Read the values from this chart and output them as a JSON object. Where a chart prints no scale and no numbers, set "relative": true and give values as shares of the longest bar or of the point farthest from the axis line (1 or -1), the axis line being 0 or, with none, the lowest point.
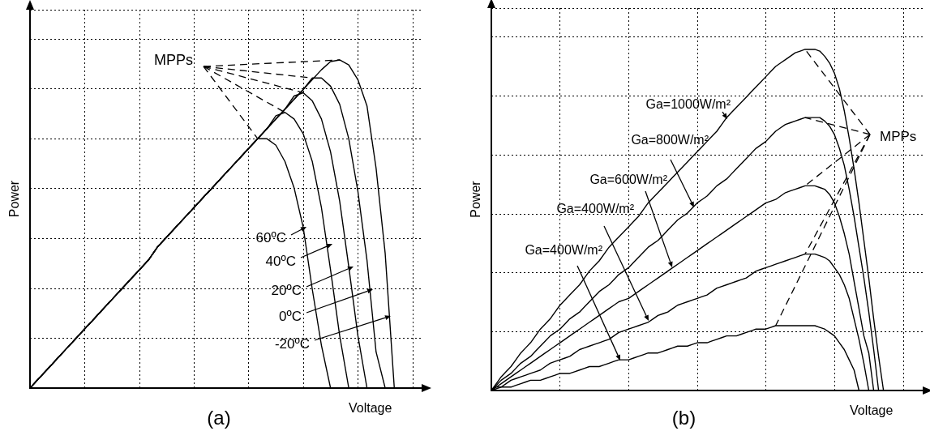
{
  "chart_data": [
    {
      "type": "line",
      "title": "(a)",
      "xlabel": "Voltage",
      "ylabel": "Power",
      "relative": true,
      "grid": true,
      "marker": "none",
      "line_style": "solid",
      "categories": [
        null,
        null,
        null,
        null,
        null,
        null,
        null,
        null,
        null,
        null,
        null,
        null,
        null,
        null,
        null,
        null,
        null,
        null,
        null,
        null,
        null,
        null,
        null,
        null,
        null,
        null,
        null,
        null,
        null,
        null,
        null,
        null,
        null,
        null,
        null,
        null,
        null,
        null,
        null,
        null,
        null,
        null,
        null,
        null
      ],
      "series": [
        {
          "color": "#000000",
          "values": [
            0,
            0.03,
            0.06,
            0.09,
            0.12,
            0.15,
            0.18,
            0.21,
            0.24,
            0.27,
            0.3,
            0.33,
            0.36,
            0.39,
            0.43,
            0.46,
            0.49,
            0.52,
            0.55,
            0.58,
            0.61,
            0.64,
            0.67,
            0.7,
            0.73,
            0.76,
            0.76,
            0.74,
            0.69,
            0.61,
            0.49,
            0.3,
            0.13,
            0,
            null,
            null,
            null,
            null,
            null,
            null,
            null,
            null,
            null,
            null
          ]
        },
        {
          "color": "#000000",
          "values": [
            0,
            0.03,
            0.06,
            0.09,
            0.12,
            0.15,
            0.18,
            0.21,
            0.24,
            0.27,
            0.3,
            0.33,
            0.36,
            0.39,
            0.43,
            0.46,
            0.49,
            0.52,
            0.55,
            0.58,
            0.61,
            0.64,
            0.67,
            0.7,
            0.73,
            0.76,
            0.79,
            0.83,
            0.84,
            0.82,
            0.775,
            0.69,
            0.55,
            0.36,
            0.16,
            0,
            null,
            null,
            null,
            null,
            null,
            null,
            null,
            null
          ]
        },
        {
          "color": "#000000",
          "values": [
            0,
            0.03,
            0.06,
            0.09,
            0.12,
            0.15,
            0.18,
            0.21,
            0.24,
            0.27,
            0.3,
            0.33,
            0.36,
            0.39,
            0.43,
            0.46,
            0.49,
            0.52,
            0.55,
            0.58,
            0.61,
            0.64,
            0.67,
            0.7,
            0.73,
            0.76,
            0.79,
            0.82,
            0.85,
            0.89,
            0.9,
            0.875,
            0.82,
            0.72,
            0.57,
            0.37,
            0.16,
            0,
            null,
            null,
            null,
            null,
            null,
            null
          ]
        },
        {
          "color": "#000000",
          "values": [
            0,
            0.03,
            0.06,
            0.09,
            0.12,
            0.15,
            0.18,
            0.21,
            0.24,
            0.27,
            0.3,
            0.33,
            0.36,
            0.39,
            0.43,
            0.46,
            0.49,
            0.52,
            0.55,
            0.58,
            0.61,
            0.64,
            0.67,
            0.7,
            0.73,
            0.76,
            0.79,
            0.82,
            0.85,
            0.88,
            0.91,
            0.945,
            0.945,
            0.92,
            0.865,
            0.76,
            0.6,
            0.39,
            0.11,
            0,
            null,
            null,
            null,
            null
          ]
        },
        {
          "color": "#000000",
          "values": [
            0,
            0.03,
            0.06,
            0.09,
            0.12,
            0.15,
            0.18,
            0.21,
            0.24,
            0.27,
            0.3,
            0.33,
            0.36,
            0.39,
            0.43,
            0.46,
            0.49,
            0.52,
            0.55,
            0.58,
            0.61,
            0.64,
            0.67,
            0.7,
            0.73,
            0.76,
            0.79,
            0.82,
            0.85,
            0.88,
            0.91,
            0.94,
            0.97,
            0.995,
            1.0,
            0.985,
            0.94,
            0.86,
            0.67,
            0.41,
            0,
            null,
            null,
            null
          ]
        }
      ],
      "annotations": [
        "MPPs",
        "60ºC",
        "40ºC",
        "20ºC",
        "0ºC",
        "-20ºC"
      ]
    },
    {
      "type": "line",
      "title": "(b)",
      "xlabel": "Voltage",
      "ylabel": "Power",
      "relative": true,
      "grid": true,
      "marker": "none",
      "line_style": "solid",
      "categories": [
        null,
        null,
        null,
        null,
        null,
        null,
        null,
        null,
        null,
        null,
        null,
        null,
        null,
        null,
        null,
        null,
        null,
        null,
        null,
        null,
        null,
        null,
        null,
        null,
        null,
        null,
        null,
        null,
        null,
        null,
        null,
        null,
        null,
        null,
        null,
        null,
        null,
        null,
        null,
        null,
        null,
        null,
        null,
        null,
        null,
        null,
        null,
        null,
        null,
        null,
        null,
        null,
        null,
        null,
        null,
        null,
        null,
        null,
        null,
        null,
        null,
        null,
        null,
        null,
        null,
        null,
        null,
        null,
        null,
        null,
        null,
        null,
        null,
        null,
        null,
        null,
        null,
        null,
        null,
        null,
        null,
        null,
        null,
        null,
        null,
        null,
        null,
        null,
        null
      ],
      "series": [
        {
          "color": "#000000",
          "values": [
            0,
            0.02,
            0.04,
            0.055,
            0.07,
            0.09,
            0.11,
            0.125,
            0.14,
            0.16,
            0.18,
            0.195,
            0.21,
            0.23,
            0.25,
            0.265,
            0.28,
            0.295,
            0.31,
            0.33,
            0.35,
            0.365,
            0.38,
            0.4,
            0.42,
            0.435,
            0.45,
            0.465,
            0.48,
            0.495,
            0.51,
            0.53,
            0.55,
            0.565,
            0.58,
            0.595,
            0.61,
            0.625,
            0.64,
            0.655,
            0.67,
            0.685,
            0.7,
            0.715,
            0.73,
            0.745,
            0.76,
            0.78,
            0.8,
            0.815,
            0.83,
            0.845,
            0.86,
            0.875,
            0.89,
            0.905,
            0.92,
            0.935,
            0.95,
            0.96,
            0.97,
            0.98,
            0.99,
            0.995,
            1.0,
            1.0,
            1.0,
            0.995,
            0.98,
            0.96,
            0.93,
            0.885,
            0.82,
            0.74,
            0.65,
            0.55,
            0.44,
            0.33,
            0.21,
            0.1,
            0,
            null,
            null,
            null,
            null,
            null,
            null,
            null,
            null
          ]
        },
        {
          "color": "#000000",
          "values": [
            0,
            0.015,
            0.03,
            0.04,
            0.05,
            0.065,
            0.08,
            0.09,
            0.1,
            0.115,
            0.13,
            0.145,
            0.16,
            0.17,
            0.18,
            0.195,
            0.21,
            0.22,
            0.23,
            0.245,
            0.26,
            0.275,
            0.29,
            0.3,
            0.31,
            0.325,
            0.34,
            0.35,
            0.36,
            0.375,
            0.39,
            0.405,
            0.42,
            0.43,
            0.44,
            0.455,
            0.47,
            0.485,
            0.5,
            0.51,
            0.52,
            0.535,
            0.55,
            0.56,
            0.57,
            0.585,
            0.6,
            0.61,
            0.62,
            0.635,
            0.65,
            0.665,
            0.68,
            0.695,
            0.71,
            0.72,
            0.73,
            0.745,
            0.76,
            0.77,
            0.78,
            0.785,
            0.79,
            0.795,
            0.8,
            0.8,
            0.8,
            0.8,
            0.79,
            0.775,
            0.75,
            0.71,
            0.66,
            0.59,
            0.51,
            0.42,
            0.33,
            0.23,
            0.12,
            0,
            null,
            null,
            null,
            null,
            null,
            null,
            null,
            null,
            null
          ]
        },
        {
          "color": "#000000",
          "values": [
            0,
            0.01,
            0.02,
            0.03,
            0.04,
            0.05,
            0.06,
            0.07,
            0.08,
            0.09,
            0.1,
            0.11,
            0.12,
            0.13,
            0.14,
            0.15,
            0.16,
            0.17,
            0.18,
            0.19,
            0.2,
            0.21,
            0.22,
            0.23,
            0.24,
            0.25,
            0.26,
            0.265,
            0.27,
            0.28,
            0.29,
            0.3,
            0.31,
            0.32,
            0.33,
            0.34,
            0.35,
            0.36,
            0.37,
            0.38,
            0.39,
            0.4,
            0.41,
            0.42,
            0.43,
            0.44,
            0.45,
            0.46,
            0.47,
            0.48,
            0.49,
            0.5,
            0.51,
            0.52,
            0.53,
            0.54,
            0.55,
            0.555,
            0.56,
            0.57,
            0.58,
            0.585,
            0.59,
            0.595,
            0.6,
            0.6,
            0.6,
            0.595,
            0.59,
            0.575,
            0.55,
            0.51,
            0.46,
            0.4,
            0.32,
            0.24,
            0.16,
            0.11,
            0,
            null,
            null,
            null,
            null,
            null,
            null,
            null,
            null,
            null,
            null
          ]
        },
        {
          "color": "#000000",
          "values": [
            0,
            0.01,
            0.01,
            0.02,
            0.03,
            0.035,
            0.04,
            0.045,
            0.05,
            0.055,
            0.06,
            0.07,
            0.08,
            0.085,
            0.09,
            0.095,
            0.1,
            0.11,
            0.12,
            0.125,
            0.13,
            0.135,
            0.14,
            0.145,
            0.15,
            0.16,
            0.17,
            0.175,
            0.18,
            0.185,
            0.19,
            0.195,
            0.2,
            0.21,
            0.22,
            0.225,
            0.23,
            0.24,
            0.25,
            0.255,
            0.26,
            0.265,
            0.27,
            0.275,
            0.28,
            0.29,
            0.3,
            0.305,
            0.31,
            0.315,
            0.32,
            0.325,
            0.33,
            0.34,
            0.35,
            0.355,
            0.36,
            0.365,
            0.37,
            0.375,
            0.38,
            0.385,
            0.39,
            0.395,
            0.4,
            0.4,
            0.4,
            0.395,
            0.39,
            0.38,
            0.36,
            0.34,
            0.31,
            0.27,
            0.21,
            0.15,
            0.08,
            0,
            null,
            null,
            null,
            null,
            null,
            null,
            null,
            null,
            null,
            null,
            null
          ]
        },
        {
          "color": "#000000",
          "values": [
            0,
            0.005,
            0.01,
            0.01,
            0.01,
            0.015,
            0.02,
            0.025,
            0.03,
            0.03,
            0.03,
            0.035,
            0.04,
            0.045,
            0.05,
            0.05,
            0.05,
            0.055,
            0.06,
            0.065,
            0.07,
            0.07,
            0.07,
            0.075,
            0.08,
            0.085,
            0.09,
            0.09,
            0.09,
            0.095,
            0.1,
            0.105,
            0.11,
            0.11,
            0.11,
            0.115,
            0.12,
            0.125,
            0.13,
            0.13,
            0.13,
            0.135,
            0.14,
            0.14,
            0.14,
            0.145,
            0.15,
            0.155,
            0.16,
            0.16,
            0.16,
            0.165,
            0.17,
            0.175,
            0.18,
            0.18,
            0.18,
            0.185,
            0.19,
            0.19,
            0.19,
            0.19,
            0.19,
            0.19,
            0.19,
            0.19,
            0.19,
            0.185,
            0.18,
            0.17,
            0.16,
            0.14,
            0.12,
            0.09,
            0.06,
            0,
            null,
            null,
            null,
            null,
            null,
            null,
            null,
            null,
            null,
            null,
            null,
            null,
            null
          ]
        }
      ],
      "annotations": [
        "Ga=1000W/m²",
        "Ga=800W/m²",
        "Ga=600W/m²",
        "Ga=400W/m²",
        "Ga=400W/m²",
        "MPPs"
      ]
    }
  ]
}
